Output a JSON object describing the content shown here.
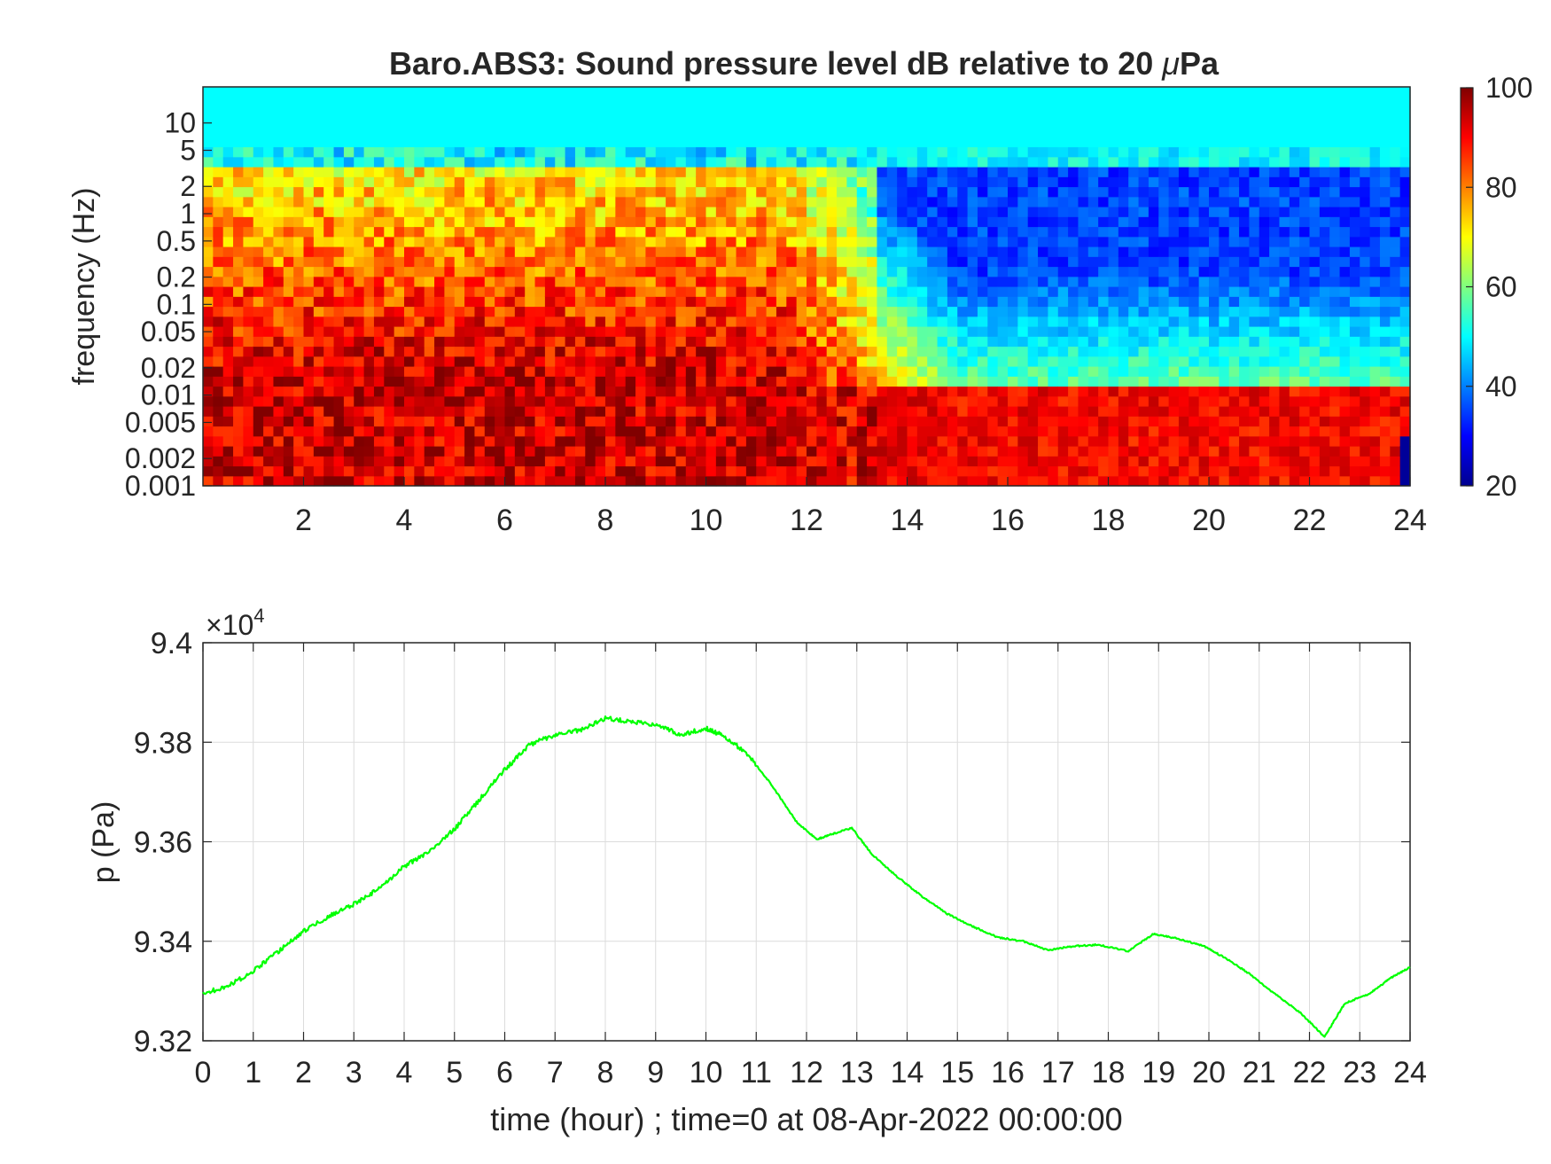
{
  "figure": {
    "time_xlabel": "time (hour) ; time=0 at 08-Apr-2022 00:00:00"
  },
  "chart_data": [
    {
      "type": "heatmap",
      "title_prefix": "Baro.ABS3: Sound pressure level dB relative to 20 ",
      "title_mu": "μ",
      "title_suffix": "Pa",
      "xlabel": "",
      "ylabel": "frequency (Hz)",
      "xlim": [
        0,
        24
      ],
      "ylim": [
        0.001,
        25
      ],
      "yscale": "log",
      "x_ticks": [
        2,
        4,
        6,
        8,
        10,
        12,
        14,
        16,
        18,
        20,
        22,
        24
      ],
      "y_ticks": [
        0.001,
        0.002,
        0.005,
        0.01,
        0.02,
        0.05,
        0.1,
        0.2,
        0.5,
        1,
        2,
        5,
        10
      ],
      "y_tick_labels": [
        "0.001",
        "0.002",
        "0.005",
        "0.01",
        "0.02",
        "0.05",
        "0.1",
        "0.2",
        "0.5",
        "1",
        "2",
        "5",
        "10"
      ],
      "colorbar": {
        "min": 20,
        "max": 100,
        "ticks": [
          20,
          40,
          60,
          80,
          100
        ],
        "colormap": "jet"
      },
      "description_bands": [
        {
          "x": [
            0,
            11.7
          ],
          "low_freq_db": 95,
          "mid_freq_db": 85,
          "high_freq_db": 70,
          "top_db": 50
        },
        {
          "x": [
            11.7,
            15
          ],
          "low_freq_db": 92,
          "mid_freq_db": 72,
          "high_freq_db": 55,
          "top_db": 50
        },
        {
          "x": [
            15,
            23.8
          ],
          "low_freq_db": 90,
          "mid_freq_db": 58,
          "high_freq_db": 40,
          "top_db": 50
        }
      ]
    },
    {
      "type": "line",
      "xlabel": "time (hour) ; time=0 at 08-Apr-2022 00:00:00",
      "ylabel": "p (Pa)",
      "xlim": [
        0,
        24
      ],
      "ylim": [
        93200,
        94000
      ],
      "grid": true,
      "y_exponent_label": "×10",
      "y_exponent_power": "4",
      "x_ticks": [
        0,
        1,
        2,
        3,
        4,
        5,
        6,
        7,
        8,
        9,
        10,
        11,
        12,
        13,
        14,
        15,
        16,
        17,
        18,
        19,
        20,
        21,
        22,
        23,
        24
      ],
      "y_ticks": [
        93200,
        93400,
        93600,
        93800,
        94000
      ],
      "y_tick_labels": [
        "9.32",
        "9.34",
        "9.36",
        "9.38",
        "9.4"
      ],
      "line_color": "#00ff00",
      "series": [
        {
          "x": [
            0,
            0.5,
            1,
            1.5,
            2,
            2.5,
            3,
            3.5,
            4,
            4.5,
            5,
            5.5,
            6,
            6.5,
            7,
            7.5,
            8,
            8.5,
            9,
            9.5,
            10,
            10.3,
            10.8,
            11.3,
            11.8,
            12.2,
            12.5,
            12.9,
            13.3,
            13.8,
            14.3,
            14.8,
            15.3,
            15.8,
            16.3,
            16.8,
            17.3,
            17.8,
            18.4,
            18.9,
            19.4,
            19.9,
            20.3,
            20.8,
            21.3,
            21.8,
            22.3,
            22.7,
            23.2,
            23.6,
            24.0
          ],
          "y": [
            93295,
            93310,
            93340,
            93380,
            93420,
            93450,
            93475,
            93505,
            93550,
            93580,
            93625,
            93685,
            93745,
            93795,
            93815,
            93825,
            93848,
            93842,
            93835,
            93815,
            93828,
            93815,
            93780,
            93715,
            93640,
            93605,
            93615,
            93628,
            93575,
            93530,
            93490,
            93455,
            93430,
            93408,
            93400,
            93382,
            93390,
            93393,
            93380,
            93415,
            93405,
            93390,
            93368,
            93335,
            93295,
            93258,
            93208,
            93275,
            93295,
            93325,
            93348
          ]
        }
      ]
    }
  ]
}
